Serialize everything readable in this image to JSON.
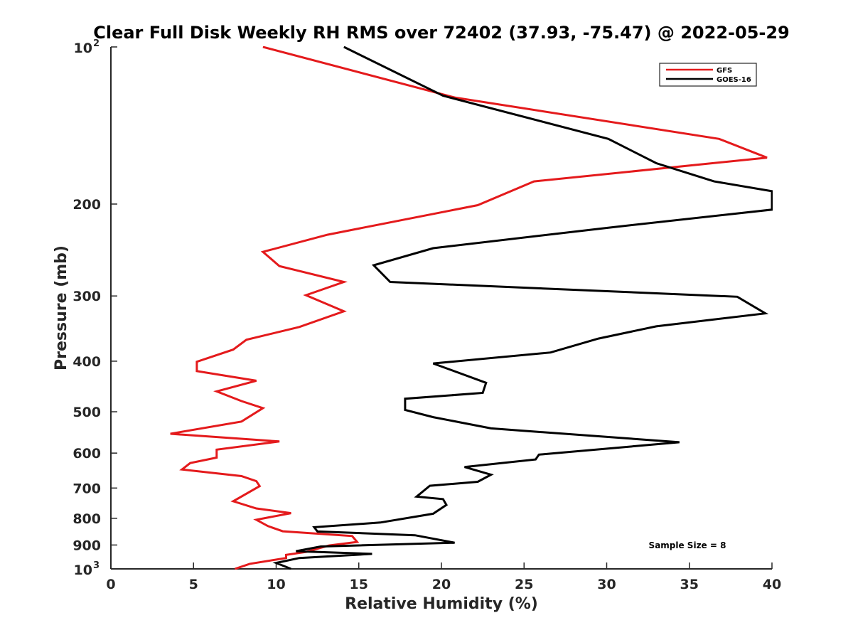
{
  "chart_data": {
    "type": "line",
    "title": "Clear Full Disk Weekly RH RMS over 72402 (37.93, -75.47) @ 2022-05-29",
    "xlabel": "Relative Humidity (%)",
    "ylabel": "Pressure (mb)",
    "xlim": [
      0,
      40
    ],
    "ylim": [
      100,
      1000
    ],
    "yscale": "log",
    "y_reversed": true,
    "x_ticks": [
      0,
      5,
      10,
      15,
      20,
      25,
      30,
      35,
      40
    ],
    "x_tick_labels": [
      "0",
      "5",
      "10",
      "15",
      "20",
      "25",
      "30",
      "35",
      "40"
    ],
    "y_ticks": [
      {
        "value": 100,
        "label": "10",
        "sup": "2"
      },
      {
        "value": 200,
        "label": "200",
        "sup": ""
      },
      {
        "value": 300,
        "label": "300",
        "sup": ""
      },
      {
        "value": 400,
        "label": "400",
        "sup": ""
      },
      {
        "value": 500,
        "label": "500",
        "sup": ""
      },
      {
        "value": 600,
        "label": "600",
        "sup": ""
      },
      {
        "value": 700,
        "label": "700",
        "sup": ""
      },
      {
        "value": 800,
        "label": "800",
        "sup": ""
      },
      {
        "value": 900,
        "label": "900",
        "sup": ""
      },
      {
        "value": 1000,
        "label": "10",
        "sup": "3"
      }
    ],
    "legend": {
      "location": "top-right",
      "entries": [
        "GFS",
        "GOES-16"
      ]
    },
    "annotation": "Sample Size = 8",
    "series": [
      {
        "name": "GFS",
        "color": "#e41a1c",
        "points": [
          [
            9.2,
            100
          ],
          [
            20.8,
            125
          ],
          [
            36.8,
            150
          ],
          [
            39.7,
            163
          ],
          [
            25.6,
            181
          ],
          [
            22.2,
            201
          ],
          [
            13.1,
            229
          ],
          [
            9.2,
            247
          ],
          [
            10.2,
            263
          ],
          [
            14.1,
            282
          ],
          [
            11.8,
            299
          ],
          [
            14.1,
            321
          ],
          [
            11.4,
            344
          ],
          [
            8.2,
            364
          ],
          [
            7.4,
            380
          ],
          [
            5.2,
            401
          ],
          [
            5.2,
            418
          ],
          [
            8.8,
            436
          ],
          [
            6.4,
            457
          ],
          [
            7.9,
            477
          ],
          [
            9.2,
            492
          ],
          [
            7.9,
            522
          ],
          [
            3.6,
            551
          ],
          [
            10.2,
            570
          ],
          [
            6.4,
            591
          ],
          [
            6.4,
            612
          ],
          [
            4.8,
            627
          ],
          [
            4.3,
            645
          ],
          [
            7.9,
            664
          ],
          [
            8.8,
            679
          ],
          [
            9.0,
            694
          ],
          [
            7.4,
            742
          ],
          [
            8.8,
            766
          ],
          [
            10.9,
            782
          ],
          [
            8.8,
            805
          ],
          [
            9.5,
            828
          ],
          [
            10.4,
            847
          ],
          [
            14.6,
            865
          ],
          [
            14.9,
            888
          ],
          [
            13.2,
            902
          ],
          [
            11.8,
            928
          ],
          [
            10.6,
            940
          ],
          [
            10.6,
            953
          ],
          [
            8.4,
            978
          ],
          [
            7.5,
            1000
          ]
        ]
      },
      {
        "name": "GOES-16",
        "color": "#000000",
        "points": [
          [
            14.1,
            100
          ],
          [
            20.1,
            124
          ],
          [
            30.1,
            150
          ],
          [
            33.0,
            167
          ],
          [
            36.5,
            181
          ],
          [
            40.0,
            189
          ],
          [
            40.0,
            205
          ],
          [
            30.1,
            222
          ],
          [
            19.5,
            243
          ],
          [
            15.9,
            262
          ],
          [
            16.9,
            282
          ],
          [
            37.9,
            301
          ],
          [
            39.6,
            324
          ],
          [
            33.0,
            343
          ],
          [
            29.5,
            362
          ],
          [
            26.6,
            385
          ],
          [
            19.5,
            404
          ],
          [
            22.7,
            440
          ],
          [
            22.5,
            460
          ],
          [
            17.8,
            472
          ],
          [
            17.8,
            496
          ],
          [
            19.5,
            512
          ],
          [
            23.0,
            538
          ],
          [
            34.4,
            572
          ],
          [
            25.9,
            604
          ],
          [
            25.7,
            617
          ],
          [
            21.4,
            638
          ],
          [
            23.0,
            660
          ],
          [
            22.2,
            681
          ],
          [
            19.3,
            693
          ],
          [
            18.5,
            727
          ],
          [
            20.1,
            735
          ],
          [
            20.3,
            754
          ],
          [
            19.5,
            784
          ],
          [
            16.3,
            815
          ],
          [
            12.3,
            832
          ],
          [
            12.5,
            848
          ],
          [
            18.4,
            862
          ],
          [
            20.8,
            891
          ],
          [
            12.7,
            906
          ],
          [
            11.2,
            925
          ],
          [
            15.8,
            936
          ],
          [
            11.4,
            953
          ],
          [
            10.0,
            974
          ],
          [
            10.9,
            1000
          ]
        ]
      }
    ]
  }
}
